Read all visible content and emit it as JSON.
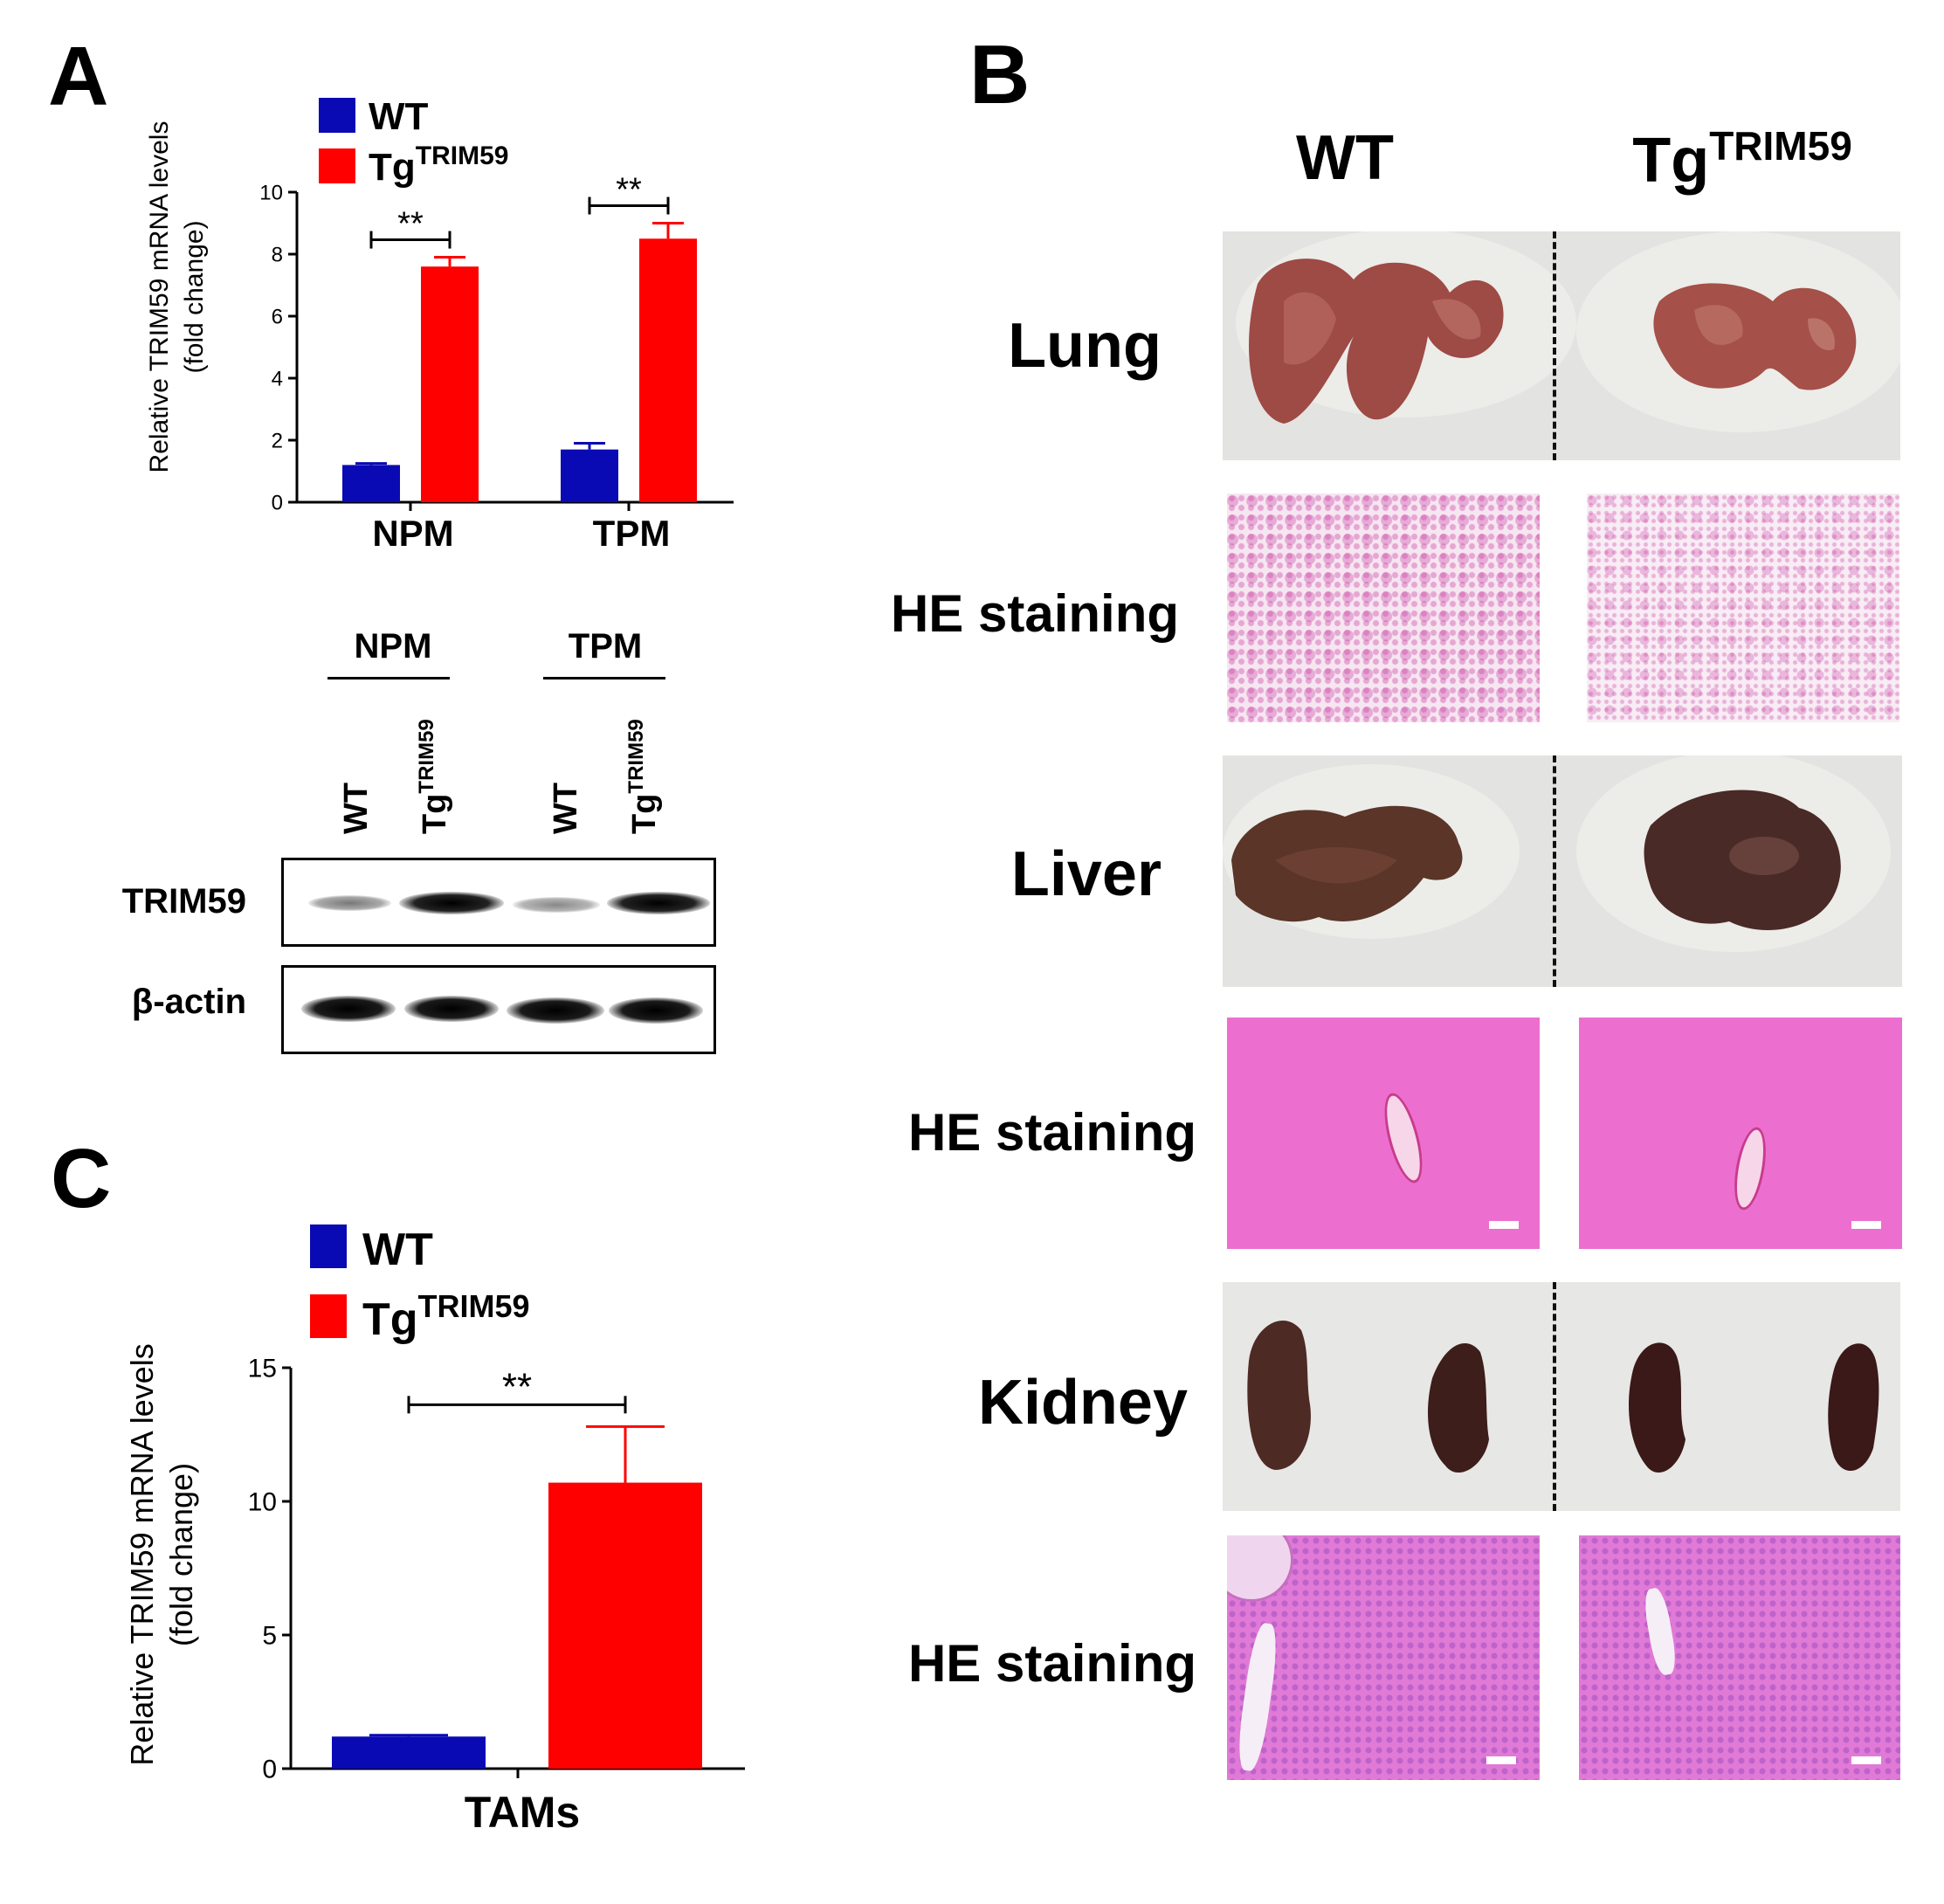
{
  "panels": {
    "a": "A",
    "b": "B",
    "c": "C"
  },
  "legend": {
    "wt": "WT",
    "tg_base": "Tg",
    "tg_sup": "TRIM59"
  },
  "colors": {
    "wt": "#0a0ab4",
    "tg": "#ff0000",
    "axis": "#000000"
  },
  "charts": {
    "a": {
      "ylabel_line1": "Relative  TRIM59 mRNA levels",
      "ylabel_line2": "(fold change)",
      "yticks": [
        "0",
        "2",
        "4",
        "6",
        "8",
        "10"
      ],
      "significance": "**"
    },
    "c": {
      "ylabel_line1": "Relative  TRIM59 mRNA levels",
      "ylabel_line2": "(fold change)",
      "yticks": [
        "0",
        "5",
        "10",
        "15"
      ],
      "significance": "**"
    }
  },
  "chart_data": [
    {
      "type": "bar",
      "panel": "A",
      "categories": [
        "NPM",
        "TPM"
      ],
      "series": [
        {
          "name": "WT",
          "values": [
            1.2,
            1.7
          ],
          "errors": [
            0.05,
            0.2
          ]
        },
        {
          "name": "TgTRIM59",
          "values": [
            7.6,
            8.5
          ],
          "errors": [
            0.3,
            0.5
          ]
        }
      ],
      "ylabel": "Relative  TRIM59 mRNA levels (fold change)",
      "ylim": [
        0,
        10
      ],
      "yticks": [
        0,
        2,
        4,
        6,
        8,
        10
      ],
      "significance": [
        "**",
        "**"
      ],
      "legend": "top-left"
    },
    {
      "type": "bar",
      "panel": "C",
      "categories": [
        "TAMs"
      ],
      "series": [
        {
          "name": "WT",
          "values": [
            1.2
          ],
          "errors": [
            0.05
          ]
        },
        {
          "name": "TgTRIM59",
          "values": [
            10.7
          ],
          "errors": [
            2.1
          ]
        }
      ],
      "ylabel": "Relative  TRIM59 mRNA levels (fold change)",
      "ylim": [
        0,
        15
      ],
      "yticks": [
        0,
        5,
        10,
        15
      ],
      "significance": [
        "**"
      ],
      "legend": "top-left"
    }
  ],
  "blot": {
    "groups": [
      "NPM",
      "TPM"
    ],
    "lanes": [
      "WT",
      "Tg",
      "WT",
      "Tg"
    ],
    "lane_sup": "TRIM59",
    "rows": [
      "TRIM59",
      "β-actin"
    ]
  },
  "panel_b": {
    "col_wt": "WT",
    "col_tg": "Tg",
    "col_tg_sup": "TRIM59",
    "rows": [
      "Lung",
      "HE staining",
      "Liver",
      "HE staining",
      "Kidney",
      "HE staining"
    ]
  }
}
